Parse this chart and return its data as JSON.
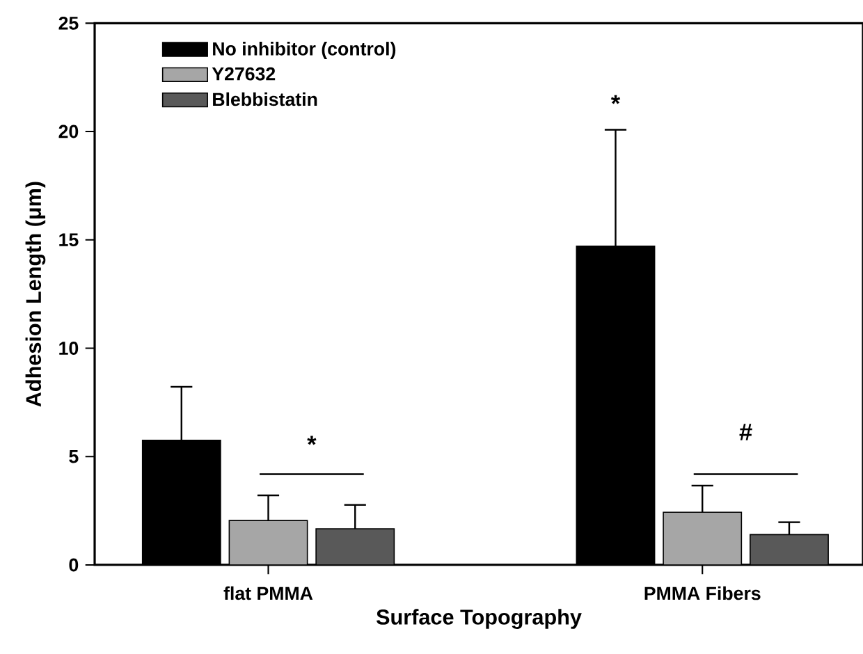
{
  "chart_data": {
    "type": "bar",
    "xlabel": "Surface Topography",
    "ylabel": "Adhesion Length (μm)",
    "categories": [
      "flat PMMA",
      "PMMA Fibers"
    ],
    "series": [
      {
        "name": "No inhibitor (control)",
        "color": "#000000",
        "values": [
          5.75,
          14.71
        ],
        "errors": [
          [
            5.75,
            8.22
          ],
          [
            14.71,
            20.08
          ]
        ]
      },
      {
        "name": "Y27632",
        "color": "#a6a6a6",
        "values": [
          2.05,
          2.43
        ],
        "errors": [
          [
            2.05,
            3.21
          ],
          [
            2.43,
            3.66
          ]
        ]
      },
      {
        "name": "Blebbistatin",
        "color": "#595959",
        "values": [
          1.67,
          1.4
        ],
        "errors": [
          [
            1.67,
            2.77
          ],
          [
            1.4,
            1.97
          ]
        ]
      }
    ],
    "ylim": [
      0,
      25
    ],
    "yticks": [
      0,
      5,
      10,
      15,
      20,
      25
    ],
    "legend": "top left",
    "grid": false,
    "annotations": [
      "*",
      "*",
      "#"
    ]
  }
}
